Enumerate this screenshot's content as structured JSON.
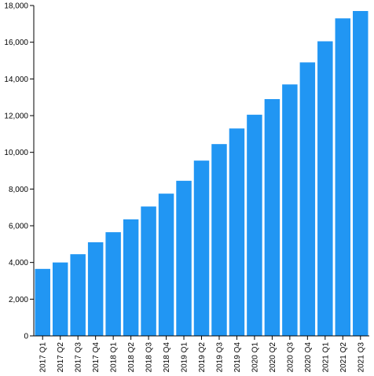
{
  "chart_data": {
    "type": "bar",
    "categories": [
      "2017 Q1",
      "2017 Q2",
      "2017 Q3",
      "2017 Q4",
      "2018 Q1",
      "2018 Q2",
      "2018 Q3",
      "2018 Q4",
      "2019 Q1",
      "2019 Q2",
      "2019 Q3",
      "2019 Q4",
      "2020 Q1",
      "2020 Q2",
      "2020 Q3",
      "2020 Q4",
      "2021 Q1",
      "2021 Q2",
      "2021 Q3"
    ],
    "values": [
      3650,
      4000,
      4450,
      5100,
      5650,
      6350,
      7050,
      7750,
      8450,
      9550,
      10450,
      11300,
      12050,
      12900,
      13700,
      14900,
      16050,
      17300,
      17700
    ],
    "ylim": [
      0,
      18000
    ],
    "yticks": [
      "0",
      "2,000",
      "4,000",
      "6,000",
      "8,000",
      "10,000",
      "12,000",
      "14,000",
      "16,000",
      "18,000"
    ],
    "title": "",
    "xlabel": "",
    "ylabel": "",
    "grid": false,
    "bar_color": "#2196f3"
  }
}
